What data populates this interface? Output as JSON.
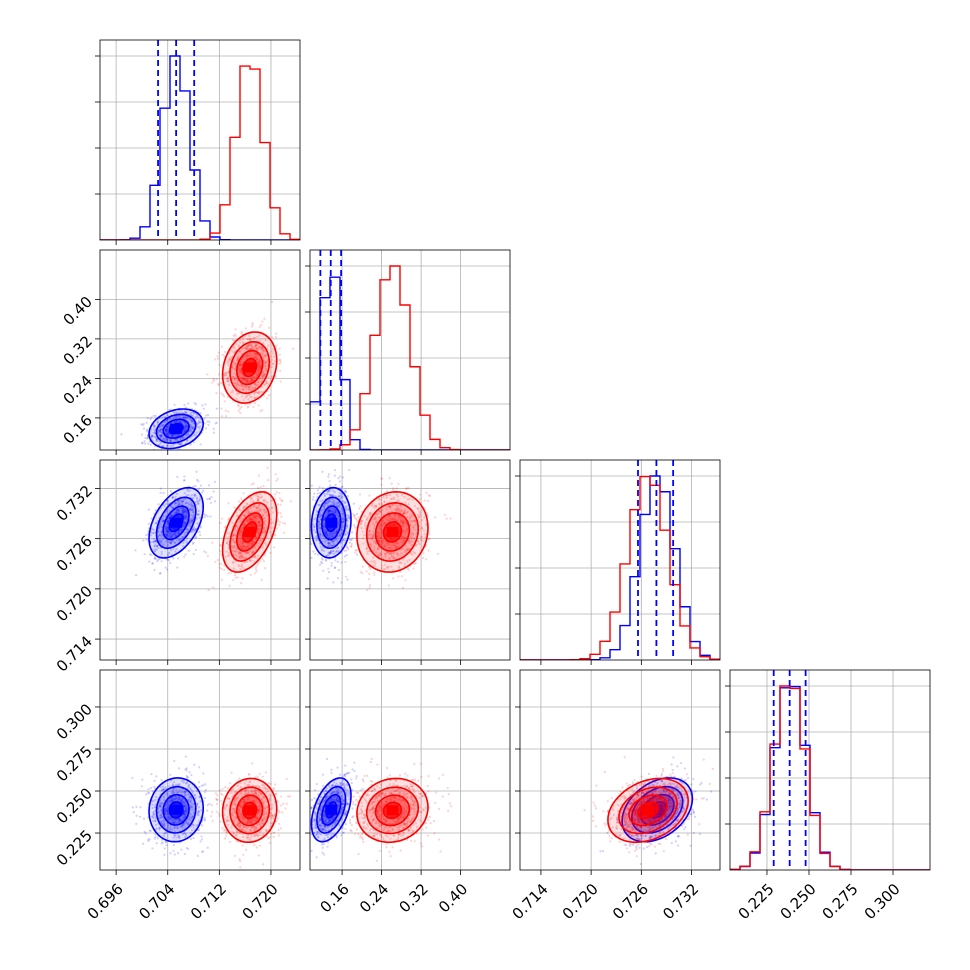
{
  "chart_data": {
    "type": "corner",
    "series": [
      {
        "color": "#0000ff"
      },
      {
        "color": "#ff0000"
      }
    ],
    "parameters": [
      {
        "index": 0,
        "range": [
          0.6935,
          0.7245
        ],
        "ticks": [
          "0.696",
          "0.704",
          "0.712",
          "0.720"
        ],
        "tick_values": [
          0.696,
          0.704,
          0.712,
          0.72
        ],
        "blue_quantiles": [
          0.7025,
          0.7053,
          0.7081
        ],
        "blue": {
          "mean": 0.7053,
          "sd": 0.0021
        },
        "red": {
          "mean": 0.7167,
          "sd": 0.0021
        }
      },
      {
        "index": 1,
        "range": [
          0.095,
          0.5
        ],
        "ticks": [
          "0.16",
          "0.24",
          "0.32",
          "0.40"
        ],
        "tick_values": [
          0.16,
          0.24,
          0.32,
          0.4
        ],
        "blue_quantiles": [
          0.116,
          0.137,
          0.158
        ],
        "blue": {
          "mean": 0.138,
          "sd": 0.02
        },
        "red": {
          "mean": 0.262,
          "sd": 0.036
        }
      },
      {
        "index": 2,
        "range": [
          0.7115,
          0.7354
        ],
        "ticks": [
          "0.714",
          "0.720",
          "0.726",
          "0.732"
        ],
        "tick_values": [
          0.714,
          0.72,
          0.726,
          0.732
        ],
        "blue_quantiles": [
          0.7256,
          0.7278,
          0.7298
        ],
        "blue": {
          "mean": 0.7279,
          "sd": 0.0021
        },
        "red": {
          "mean": 0.7268,
          "sd": 0.0024
        }
      },
      {
        "index": 3,
        "range": [
          0.203,
          0.322
        ],
        "ticks": [
          "0.225",
          "0.250",
          "0.275",
          "0.300"
        ],
        "tick_values": [
          0.225,
          0.25,
          0.275,
          0.3
        ],
        "blue_quantiles": [
          0.229,
          0.2385,
          0.248
        ],
        "blue": {
          "mean": 0.2388,
          "sd": 0.0095
        },
        "red": {
          "mean": 0.2385,
          "sd": 0.0095
        }
      }
    ],
    "grid": true,
    "legend": "none"
  }
}
